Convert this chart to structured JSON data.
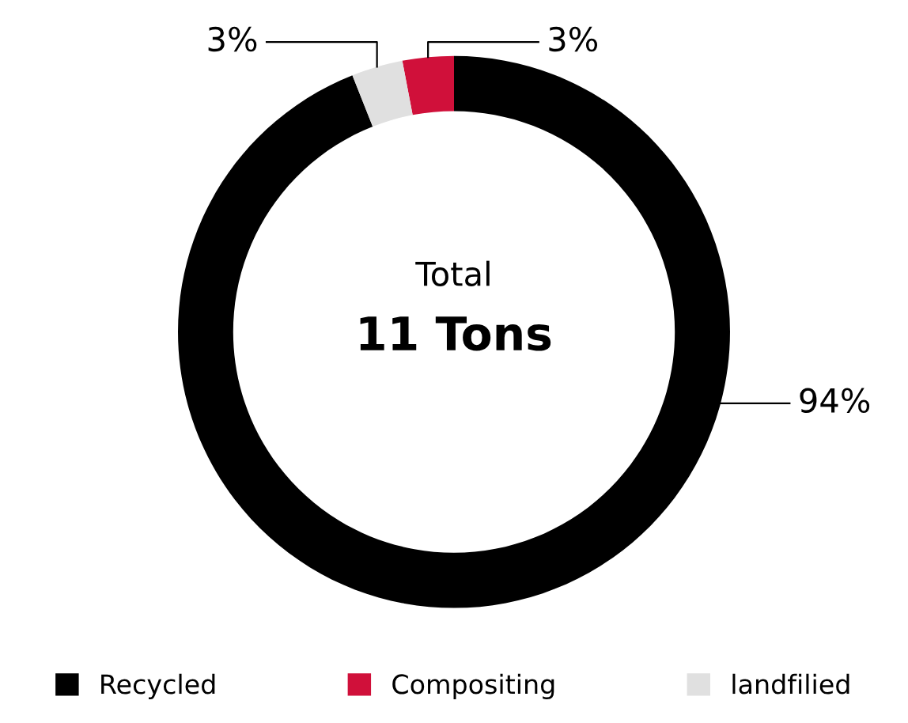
{
  "chart_data": {
    "type": "donut",
    "categories": [
      "Recycled",
      "Compositing",
      "landfilied"
    ],
    "values": [
      94,
      3,
      3
    ],
    "colors": [
      "#000000",
      "#d0103a",
      "#e0e0e0"
    ],
    "value_labels": [
      "94%",
      "3%",
      "3%"
    ],
    "annotations": [
      "Total",
      "11 Tons"
    ],
    "legend": "bottom"
  }
}
